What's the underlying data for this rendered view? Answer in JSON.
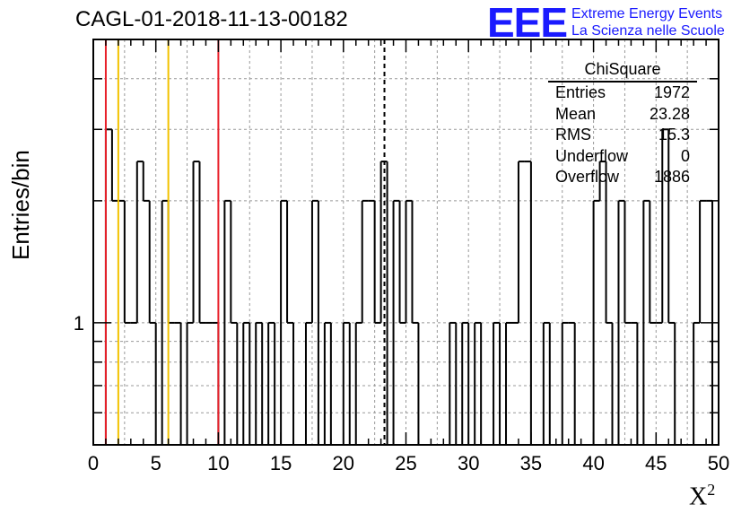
{
  "title": "CAGL-01-2018-11-13-00182",
  "logo": {
    "mark": "EEE",
    "line1": "Extreme Energy Events",
    "line2": "La Scienza nelle Scuole"
  },
  "stats": {
    "title": "ChiSquare",
    "rows": [
      {
        "label": "Entries",
        "value": "1972"
      },
      {
        "label": "Mean",
        "value": "23.28"
      },
      {
        "label": "RMS",
        "value": "15.3"
      },
      {
        "label": "Underflow",
        "value": "0"
      },
      {
        "label": "Overflow",
        "value": "1886"
      }
    ]
  },
  "chart_data": {
    "type": "bar",
    "style": "step-histogram",
    "title": "CAGL-01-2018-11-13-00182",
    "xlabel": "X",
    "xlabel_superscript": "2",
    "ylabel": "Entries/bin",
    "xlim": [
      0,
      50
    ],
    "ylim": [
      0.5,
      5
    ],
    "yscale": "log",
    "bin_width": 0.5,
    "x_ticks": [
      0,
      5,
      10,
      15,
      20,
      25,
      30,
      35,
      40,
      45,
      50
    ],
    "x_tick_labels": [
      "0",
      "5",
      "10",
      "15",
      "20",
      "25",
      "30",
      "35",
      "40",
      "45",
      "50"
    ],
    "y_ticks": [
      1
    ],
    "y_tick_labels": [
      "1"
    ],
    "grid": true,
    "bins": [
      {
        "x": 1.0,
        "y": 3
      },
      {
        "x": 1.5,
        "y": 2
      },
      {
        "x": 2.0,
        "y": 2
      },
      {
        "x": 2.5,
        "y": 1
      },
      {
        "x": 3.0,
        "y": 1
      },
      {
        "x": 3.5,
        "y": 2.5
      },
      {
        "x": 4.0,
        "y": 2
      },
      {
        "x": 4.5,
        "y": 1
      },
      {
        "x": 5.0,
        "y": 0.5
      },
      {
        "x": 5.5,
        "y": 2
      },
      {
        "x": 6.0,
        "y": 1
      },
      {
        "x": 6.5,
        "y": 1
      },
      {
        "x": 7.0,
        "y": 0.5
      },
      {
        "x": 7.5,
        "y": 1
      },
      {
        "x": 8.0,
        "y": 2.5
      },
      {
        "x": 8.5,
        "y": 1
      },
      {
        "x": 9.0,
        "y": 1
      },
      {
        "x": 9.5,
        "y": 1
      },
      {
        "x": 10.0,
        "y": 0.5
      },
      {
        "x": 10.5,
        "y": 2
      },
      {
        "x": 11.0,
        "y": 1
      },
      {
        "x": 11.5,
        "y": 0.5
      },
      {
        "x": 12.0,
        "y": 1
      },
      {
        "x": 12.5,
        "y": 0.5
      },
      {
        "x": 13.0,
        "y": 1
      },
      {
        "x": 13.5,
        "y": 0.5
      },
      {
        "x": 14.0,
        "y": 1
      },
      {
        "x": 14.5,
        "y": 0.5
      },
      {
        "x": 15.0,
        "y": 2
      },
      {
        "x": 15.5,
        "y": 1
      },
      {
        "x": 16.0,
        "y": 0.5
      },
      {
        "x": 16.5,
        "y": 0.5
      },
      {
        "x": 17.0,
        "y": 1
      },
      {
        "x": 17.5,
        "y": 2
      },
      {
        "x": 18.0,
        "y": 0.5
      },
      {
        "x": 18.5,
        "y": 1
      },
      {
        "x": 19.0,
        "y": 0.5
      },
      {
        "x": 19.5,
        "y": 0.5
      },
      {
        "x": 20.0,
        "y": 1
      },
      {
        "x": 20.5,
        "y": 0.5
      },
      {
        "x": 21.0,
        "y": 1
      },
      {
        "x": 21.5,
        "y": 2
      },
      {
        "x": 22.0,
        "y": 2
      },
      {
        "x": 22.5,
        "y": 1
      },
      {
        "x": 23.0,
        "y": 2.5
      },
      {
        "x": 23.5,
        "y": 0.5
      },
      {
        "x": 24.0,
        "y": 2
      },
      {
        "x": 24.5,
        "y": 1
      },
      {
        "x": 25.0,
        "y": 2
      },
      {
        "x": 25.5,
        "y": 1
      },
      {
        "x": 26.0,
        "y": 0.5
      },
      {
        "x": 26.5,
        "y": 0.5
      },
      {
        "x": 27.0,
        "y": 0.5
      },
      {
        "x": 27.5,
        "y": 0.5
      },
      {
        "x": 28.0,
        "y": 0.5
      },
      {
        "x": 28.5,
        "y": 1
      },
      {
        "x": 29.0,
        "y": 0.5
      },
      {
        "x": 29.5,
        "y": 1
      },
      {
        "x": 30.0,
        "y": 0.5
      },
      {
        "x": 30.5,
        "y": 1
      },
      {
        "x": 31.0,
        "y": 0.5
      },
      {
        "x": 31.5,
        "y": 0.5
      },
      {
        "x": 32.0,
        "y": 1
      },
      {
        "x": 32.5,
        "y": 0.5
      },
      {
        "x": 33.0,
        "y": 1
      },
      {
        "x": 33.5,
        "y": 1
      },
      {
        "x": 34.0,
        "y": 2.5
      },
      {
        "x": 34.5,
        "y": 2.5
      },
      {
        "x": 35.0,
        "y": 0.5
      },
      {
        "x": 35.5,
        "y": 0.5
      },
      {
        "x": 36.0,
        "y": 1
      },
      {
        "x": 36.5,
        "y": 0.5
      },
      {
        "x": 37.0,
        "y": 0.5
      },
      {
        "x": 37.5,
        "y": 1
      },
      {
        "x": 38.0,
        "y": 1
      },
      {
        "x": 38.5,
        "y": 0.5
      },
      {
        "x": 39.0,
        "y": 0.5
      },
      {
        "x": 39.5,
        "y": 0.5
      },
      {
        "x": 40.0,
        "y": 2
      },
      {
        "x": 40.5,
        "y": 2.5
      },
      {
        "x": 41.0,
        "y": 1
      },
      {
        "x": 41.5,
        "y": 0.5
      },
      {
        "x": 42.0,
        "y": 2
      },
      {
        "x": 42.5,
        "y": 1
      },
      {
        "x": 43.0,
        "y": 1
      },
      {
        "x": 43.5,
        "y": 0.5
      },
      {
        "x": 44.0,
        "y": 2
      },
      {
        "x": 44.5,
        "y": 1
      },
      {
        "x": 45.0,
        "y": 1
      },
      {
        "x": 45.5,
        "y": 3
      },
      {
        "x": 46.0,
        "y": 1
      },
      {
        "x": 46.5,
        "y": 0.5
      },
      {
        "x": 47.0,
        "y": 0.5
      },
      {
        "x": 47.5,
        "y": 0.5
      },
      {
        "x": 48.0,
        "y": 1
      },
      {
        "x": 48.5,
        "y": 2
      },
      {
        "x": 49.0,
        "y": 2
      }
    ],
    "reference_lines": [
      {
        "x": 1.0,
        "color": "#e8202a",
        "style": "solid"
      },
      {
        "x": 2.0,
        "color": "#f2c200",
        "style": "solid"
      },
      {
        "x": 6.0,
        "color": "#f2c200",
        "style": "solid"
      },
      {
        "x": 10.0,
        "color": "#e8202a",
        "style": "solid"
      },
      {
        "x": 23.28,
        "color": "#000000",
        "style": "dashed"
      }
    ],
    "colors": {
      "histogram": "#000000",
      "grid": "#999999",
      "logo": "#1a1aff"
    }
  }
}
